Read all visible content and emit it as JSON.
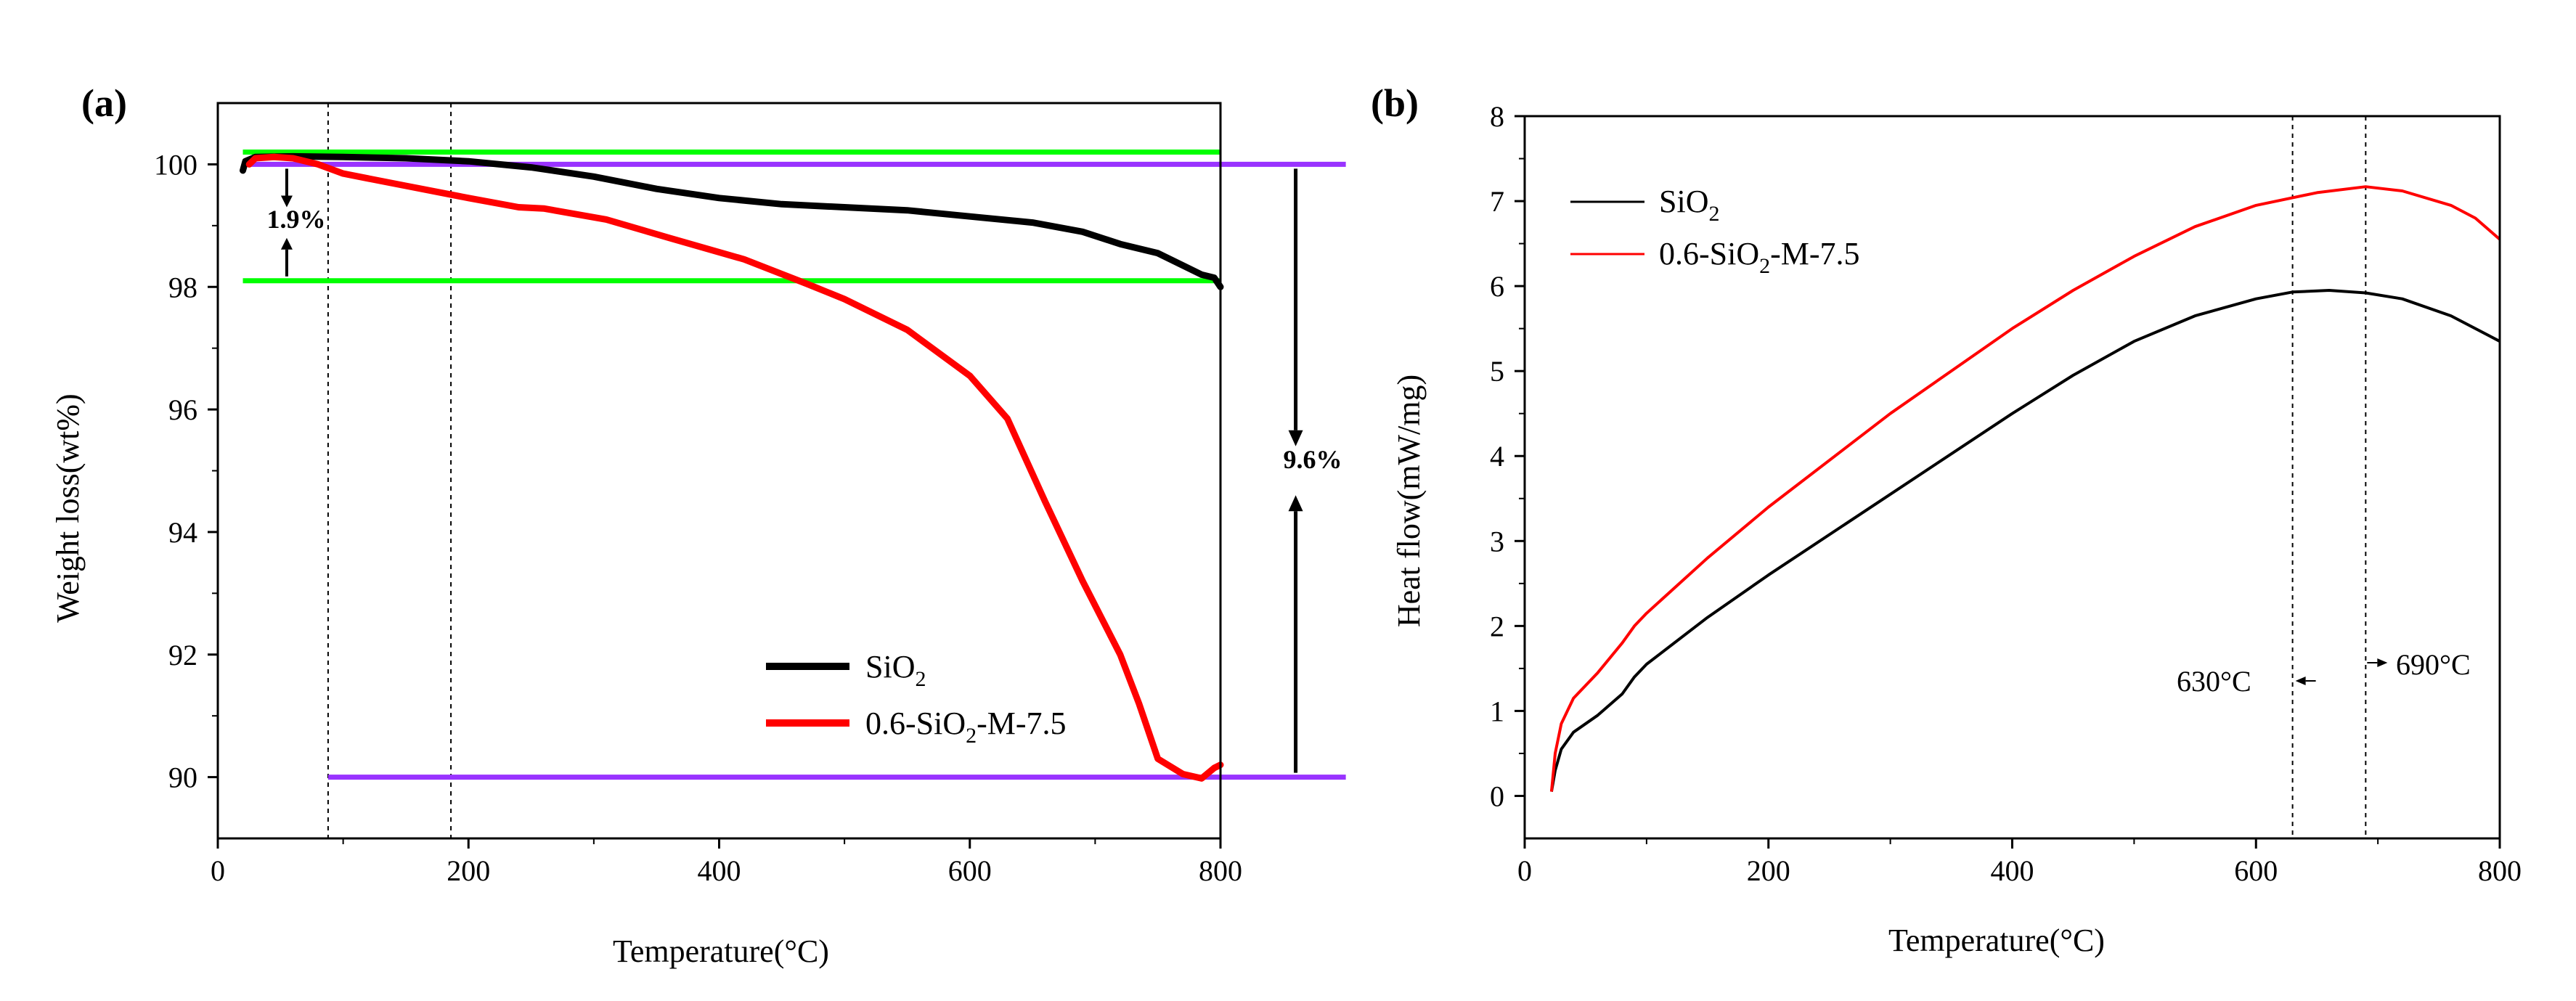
{
  "colors": {
    "sio2": "#000000",
    "sio2_m": "#ff0000",
    "guide_green": "#00ff00",
    "guide_purple": "#9933ff",
    "axis": "#000000"
  },
  "chart_data": [
    {
      "type": "line",
      "panel_label": "(a)",
      "xlabel": "Temperature(°C)",
      "ylabel": "Weight loss(wt%)",
      "xlim": [
        0,
        800
      ],
      "ylim": [
        89,
        101
      ],
      "x_ticks": [
        0,
        200,
        400,
        600,
        800
      ],
      "y_ticks": [
        90,
        92,
        94,
        96,
        98,
        100
      ],
      "series": [
        {
          "name": "SiO2",
          "legend": {
            "base": "SiO",
            "sub": "2",
            "rest": ""
          },
          "color": "#000000",
          "points": [
            [
              20,
              99.9
            ],
            [
              22,
              100.05
            ],
            [
              30,
              100.12
            ],
            [
              60,
              100.13
            ],
            [
              100,
              100.12
            ],
            [
              150,
              100.1
            ],
            [
              200,
              100.05
            ],
            [
              250,
              99.95
            ],
            [
              300,
              99.8
            ],
            [
              350,
              99.6
            ],
            [
              400,
              99.45
            ],
            [
              450,
              99.35
            ],
            [
              500,
              99.3
            ],
            [
              550,
              99.25
            ],
            [
              600,
              99.15
            ],
            [
              650,
              99.05
            ],
            [
              690,
              98.9
            ],
            [
              720,
              98.7
            ],
            [
              750,
              98.55
            ],
            [
              770,
              98.35
            ],
            [
              785,
              98.2
            ],
            [
              795,
              98.15
            ],
            [
              800,
              98.0
            ]
          ]
        },
        {
          "name": "0.6-SiO2-M-7.5",
          "legend": {
            "base": "0.6-SiO",
            "sub": "2",
            "rest": "-M-7.5"
          },
          "color": "#ff0000",
          "points": [
            [
              25,
              100.0
            ],
            [
              30,
              100.1
            ],
            [
              45,
              100.12
            ],
            [
              60,
              100.1
            ],
            [
              80,
              100.0
            ],
            [
              100,
              99.85
            ],
            [
              150,
              99.65
            ],
            [
              200,
              99.45
            ],
            [
              240,
              99.3
            ],
            [
              260,
              99.28
            ],
            [
              310,
              99.1
            ],
            [
              360,
              98.8
            ],
            [
              420,
              98.45
            ],
            [
              470,
              98.05
            ],
            [
              500,
              97.8
            ],
            [
              550,
              97.3
            ],
            [
              600,
              96.55
            ],
            [
              630,
              95.85
            ],
            [
              660,
              94.5
            ],
            [
              690,
              93.2
            ],
            [
              720,
              92.0
            ],
            [
              735,
              91.2
            ],
            [
              750,
              90.3
            ],
            [
              770,
              90.05
            ],
            [
              785,
              89.98
            ],
            [
              795,
              90.15
            ],
            [
              800,
              90.2
            ]
          ]
        }
      ],
      "annotations": {
        "small_loss": "1.9%",
        "large_loss": "9.6%",
        "dashed_x": [
          88,
          186
        ],
        "green_y": [
          100.2,
          98.1
        ],
        "green_x": [
          20,
          800
        ],
        "purple_top": {
          "y": 100.0,
          "x": [
            20,
            900
          ]
        },
        "purple_bottom": {
          "y": 90.0,
          "x": [
            88,
            900
          ]
        },
        "small_arrow_x": 55,
        "large_arrow_x": 860
      }
    },
    {
      "type": "line",
      "panel_label": "(b)",
      "xlabel": "Temperature(°C)",
      "ylabel": "Heat flow(mW/mg)",
      "xlim": [
        0,
        800
      ],
      "ylim": [
        -0.5,
        8
      ],
      "x_ticks": [
        0,
        200,
        400,
        600,
        800
      ],
      "y_ticks": [
        0,
        1,
        2,
        3,
        4,
        5,
        6,
        7,
        8
      ],
      "series": [
        {
          "name": "SiO2",
          "legend": {
            "base": "SiO",
            "sub": "2",
            "rest": ""
          },
          "color": "#000000",
          "points": [
            [
              22,
              0.05
            ],
            [
              25,
              0.3
            ],
            [
              30,
              0.55
            ],
            [
              40,
              0.75
            ],
            [
              60,
              0.95
            ],
            [
              80,
              1.2
            ],
            [
              90,
              1.4
            ],
            [
              100,
              1.55
            ],
            [
              150,
              2.1
            ],
            [
              200,
              2.6
            ],
            [
              300,
              3.55
            ],
            [
              400,
              4.5
            ],
            [
              450,
              4.95
            ],
            [
              500,
              5.35
            ],
            [
              550,
              5.65
            ],
            [
              600,
              5.85
            ],
            [
              630,
              5.93
            ],
            [
              660,
              5.95
            ],
            [
              690,
              5.92
            ],
            [
              720,
              5.85
            ],
            [
              760,
              5.65
            ],
            [
              800,
              5.35
            ]
          ]
        },
        {
          "name": "0.6-SiO2-M-7.5",
          "legend": {
            "base": "0.6-SiO",
            "sub": "2",
            "rest": "-M-7.5"
          },
          "color": "#ff0000",
          "points": [
            [
              22,
              0.05
            ],
            [
              25,
              0.5
            ],
            [
              30,
              0.85
            ],
            [
              40,
              1.15
            ],
            [
              60,
              1.45
            ],
            [
              80,
              1.8
            ],
            [
              90,
              2.0
            ],
            [
              100,
              2.15
            ],
            [
              150,
              2.8
            ],
            [
              200,
              3.4
            ],
            [
              300,
              4.5
            ],
            [
              400,
              5.5
            ],
            [
              450,
              5.95
            ],
            [
              500,
              6.35
            ],
            [
              550,
              6.7
            ],
            [
              600,
              6.95
            ],
            [
              650,
              7.1
            ],
            [
              690,
              7.17
            ],
            [
              720,
              7.12
            ],
            [
              760,
              6.95
            ],
            [
              780,
              6.8
            ],
            [
              800,
              6.55
            ]
          ]
        }
      ],
      "annotations": {
        "peak_sio2": "630°C",
        "peak_sio2_x": 630,
        "peak_mod": "690°C",
        "peak_mod_x": 690
      }
    }
  ]
}
